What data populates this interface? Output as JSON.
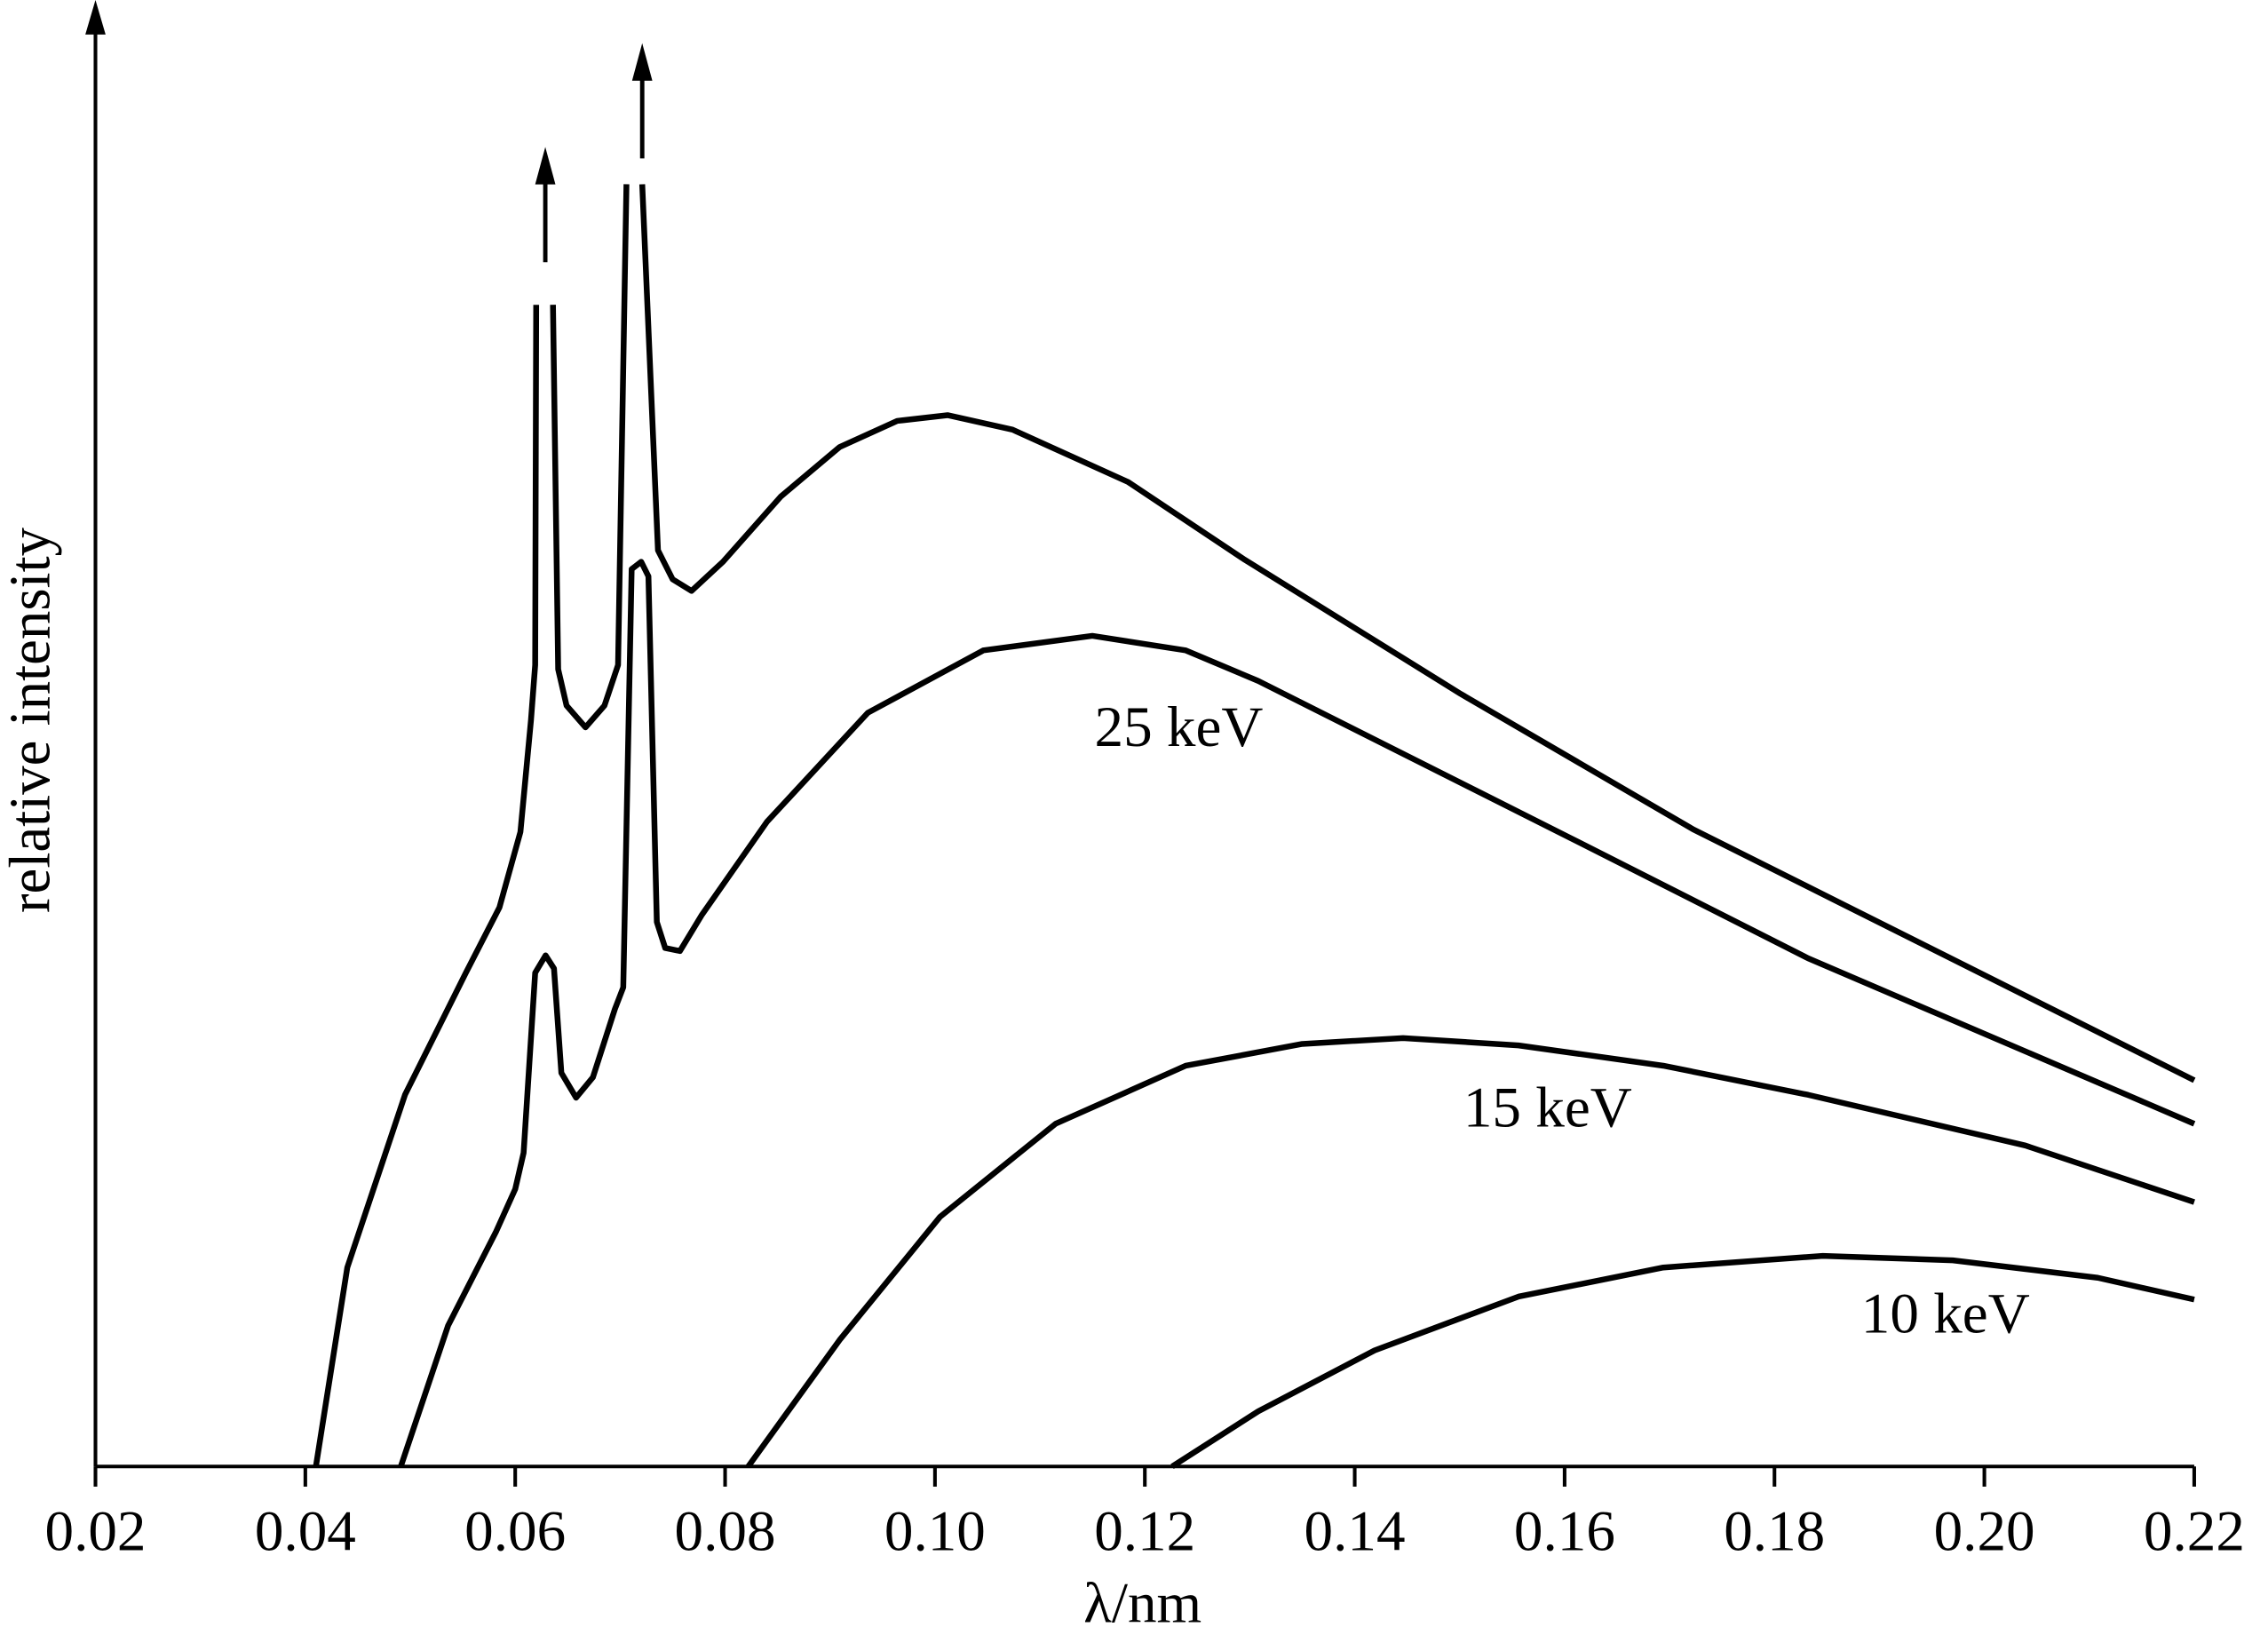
{
  "chart_data": {
    "type": "line",
    "x_label": "λ/nm",
    "y_label": "relative intensity",
    "xlim": [
      0.02,
      0.22
    ],
    "xticks": [
      0.02,
      0.04,
      0.06,
      0.08,
      {
        "value": 0.1,
        "label": "0.10"
      },
      0.12,
      0.14,
      0.16,
      0.18,
      {
        "value": 0.2,
        "label": "0.20"
      },
      0.22
    ],
    "ylim": [
      0,
      100
    ],
    "grid": false,
    "series": [
      {
        "color": "#000000",
        "x": [
          0.041,
          0.044,
          0.0495,
          0.0553,
          0.0585,
          0.0605,
          0.0615,
          0.0619,
          0.062,
          null,
          0.0636,
          0.0641,
          0.0649,
          0.0667,
          0.0685,
          0.0698,
          0.0706,
          null,
          0.0721,
          0.0736,
          0.075,
          0.0768,
          0.0798,
          0.0853,
          0.0909,
          0.0964,
          0.1012,
          0.1074,
          0.1184,
          0.1294,
          0.1501,
          0.1722,
          0.22
        ],
        "values": [
          0,
          13.7,
          25.6,
          34.0,
          38.5,
          43.7,
          51.4,
          55.2,
          80.0,
          null,
          80.0,
          54.9,
          52.4,
          50.9,
          52.4,
          55.2,
          88.3,
          null,
          88.3,
          63.1,
          61.1,
          60.3,
          62.3,
          66.8,
          70.2,
          72.0,
          72.4,
          71.4,
          67.8,
          62.5,
          53.2,
          43.9,
          26.6
        ]
      },
      {
        "name": "25 keV",
        "color": "#000000",
        "x": [
          0.0491,
          0.0536,
          0.0582,
          0.06,
          0.0608,
          0.0619,
          0.0629,
          0.0637,
          0.0644,
          0.0658,
          0.0674,
          0.0695,
          0.0703,
          0.0711,
          0.072,
          0.0727,
          0.0735,
          0.0743,
          0.0757,
          0.0778,
          0.084,
          0.0936,
          0.1046,
          0.115,
          0.1239,
          0.1308,
          0.1605,
          0.1832,
          0.22
        ],
        "values": [
          0,
          9.7,
          16.2,
          19.1,
          21.6,
          34.0,
          35.2,
          34.3,
          27.1,
          25.4,
          26.8,
          31.5,
          33.0,
          61.8,
          62.3,
          61.3,
          37.5,
          35.7,
          35.5,
          38.0,
          44.4,
          51.9,
          56.2,
          57.2,
          56.2,
          54.1,
          43.3,
          35.0,
          23.6
        ]
      },
      {
        "name": "15 keV",
        "color": "#000000",
        "x": [
          0.0822,
          0.0909,
          0.1005,
          0.1115,
          0.1239,
          0.135,
          0.1446,
          0.1556,
          0.1694,
          0.1832,
          0.2039,
          0.22
        ],
        "values": [
          0,
          8.7,
          17.2,
          23.6,
          27.6,
          29.1,
          29.5,
          29.0,
          27.6,
          25.6,
          22.1,
          18.2
        ]
      },
      {
        "name": "10 keV",
        "color": "#000000",
        "x": [
          0.1226,
          0.1308,
          0.1419,
          0.1556,
          0.1694,
          0.1846,
          0.197,
          0.2108,
          0.22
        ],
        "values": [
          0,
          3.8,
          8.0,
          11.7,
          13.7,
          14.5,
          14.2,
          13.0,
          11.5
        ]
      }
    ]
  }
}
